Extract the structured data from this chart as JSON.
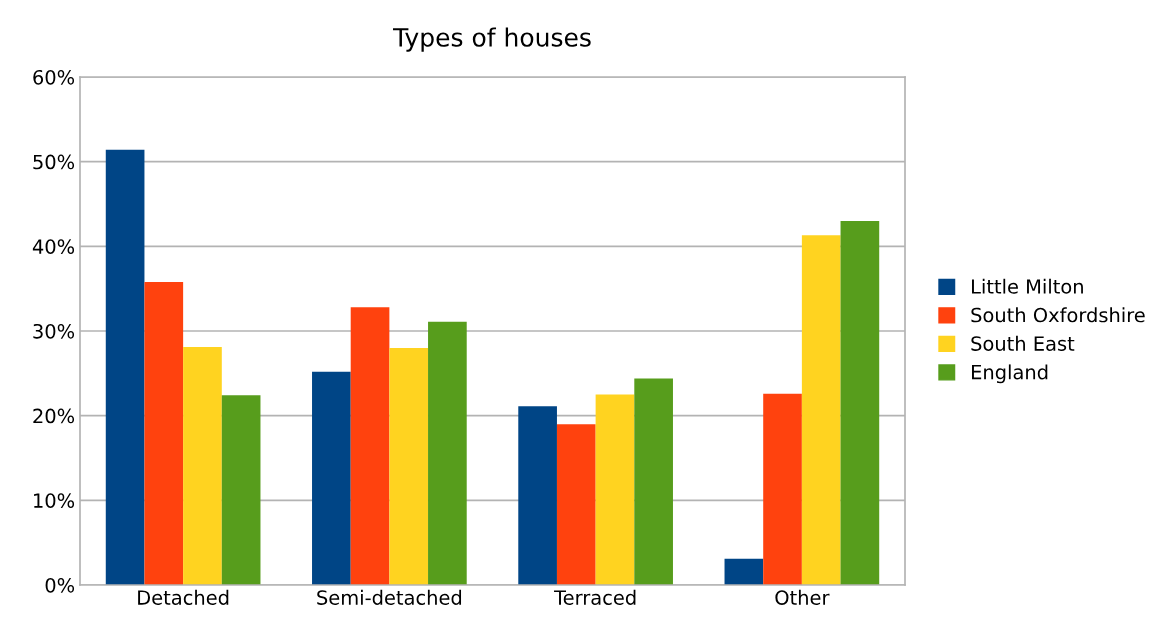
{
  "chart_data": {
    "type": "bar",
    "title": "Types of houses",
    "categories": [
      "Detached",
      "Semi-detached",
      "Terraced",
      "Other"
    ],
    "series": [
      {
        "name": "Little Milton",
        "color": "#004586",
        "values": [
          51.4,
          25.2,
          21.1,
          3.1
        ]
      },
      {
        "name": "South Oxfordshire",
        "color": "#ff420e",
        "values": [
          35.8,
          32.8,
          19.0,
          22.6
        ]
      },
      {
        "name": "South East",
        "color": "#ffd320",
        "values": [
          28.1,
          28.0,
          22.5,
          41.3
        ]
      },
      {
        "name": "England",
        "color": "#579d1c",
        "values": [
          22.4,
          31.1,
          24.4,
          43.0
        ]
      }
    ],
    "ylim": [
      0,
      60
    ],
    "yticks": [
      {
        "value": 0,
        "label": "0%"
      },
      {
        "value": 10,
        "label": "10%"
      },
      {
        "value": 20,
        "label": "20%"
      },
      {
        "value": 30,
        "label": "30%"
      },
      {
        "value": 40,
        "label": "40%"
      },
      {
        "value": 50,
        "label": "50%"
      },
      {
        "value": 60,
        "label": "60%"
      }
    ],
    "grid": "y",
    "legend": "right"
  }
}
